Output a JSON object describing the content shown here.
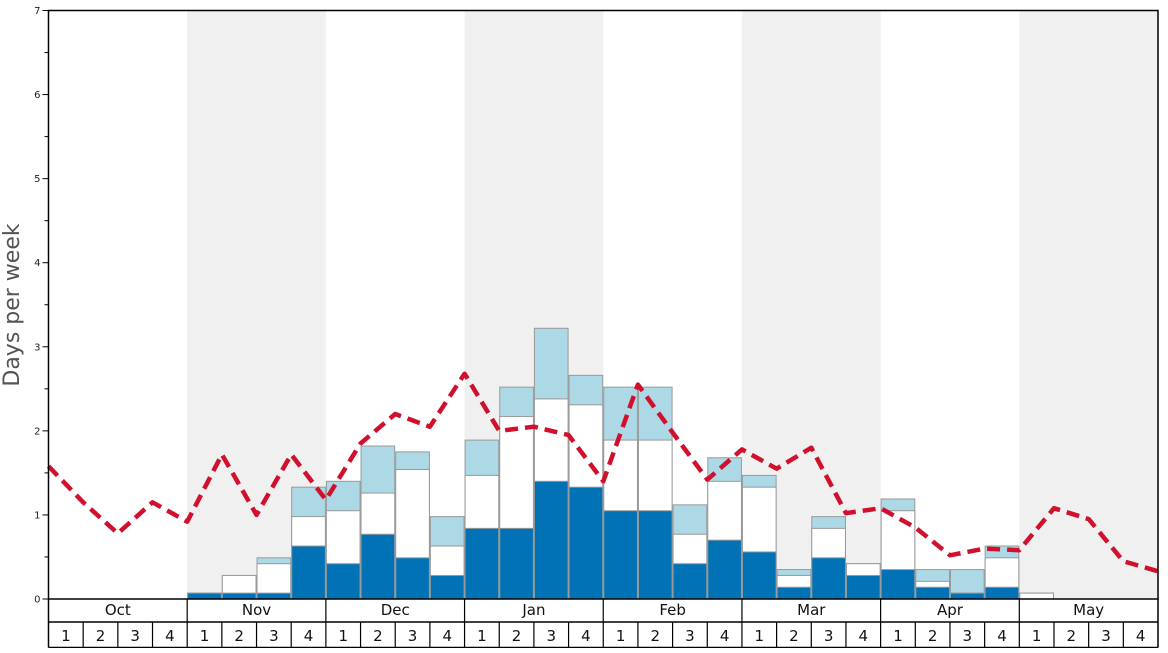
{
  "chart_data": {
    "type": "bar",
    "title": "",
    "xlabel": "",
    "ylabel": "Days per week",
    "ylim": [
      0,
      7
    ],
    "y_major_ticks": [
      0,
      1,
      2,
      3,
      4,
      5,
      6,
      7
    ],
    "months": [
      "Oct",
      "Nov",
      "Dec",
      "Jan",
      "Feb",
      "Mar",
      "Apr",
      "May"
    ],
    "week_labels": [
      "1",
      "2",
      "3",
      "4",
      "1",
      "2",
      "3",
      "4",
      "1",
      "2",
      "3",
      "4",
      "1",
      "2",
      "3",
      "4",
      "1",
      "2",
      "3",
      "4",
      "1",
      "2",
      "3",
      "4",
      "1",
      "2",
      "3",
      "4",
      "1",
      "2",
      "3",
      "4"
    ],
    "stacked_levels": {
      "dark": [
        0,
        0,
        0,
        0,
        0.07,
        0.07,
        0.07,
        0.63,
        0.42,
        0.77,
        0.49,
        0.28,
        0.84,
        0.84,
        1.4,
        1.33,
        1.05,
        1.05,
        0.42,
        0.7,
        0.56,
        0.14,
        0.49,
        0.28,
        0.35,
        0.14,
        0.07,
        0.14,
        0,
        0,
        0,
        0
      ],
      "white": [
        0,
        0,
        0,
        0,
        0.07,
        0.28,
        0.42,
        0.98,
        1.05,
        1.26,
        1.54,
        0.63,
        1.47,
        2.17,
        2.38,
        2.31,
        1.89,
        1.89,
        0.77,
        1.4,
        1.33,
        0.28,
        0.84,
        0.42,
        1.05,
        0.21,
        0.07,
        0.49,
        0.07,
        0,
        0,
        0
      ],
      "light": [
        0,
        0,
        0,
        0,
        0.07,
        0.28,
        0.49,
        1.33,
        1.4,
        1.82,
        1.75,
        0.98,
        1.89,
        2.52,
        3.22,
        2.66,
        2.52,
        2.52,
        1.12,
        1.68,
        1.47,
        0.35,
        0.98,
        0.42,
        1.19,
        0.35,
        0.35,
        0.63,
        0.07,
        0,
        0,
        0
      ]
    },
    "line": [
      1.58,
      1.15,
      0.78,
      1.15,
      0.92,
      1.72,
      1.0,
      1.72,
      1.18,
      1.85,
      2.2,
      2.05,
      2.68,
      2.0,
      2.05,
      1.95,
      1.4,
      2.55,
      1.98,
      1.42,
      1.78,
      1.55,
      1.8,
      1.02,
      1.08,
      0.85,
      0.52,
      0.6,
      0.58,
      1.08,
      0.95,
      0.45,
      0.33
    ],
    "colors": {
      "dark": "#0072b5",
      "white": "#ffffff",
      "light": "#add8e6",
      "line": "#d0102c",
      "shade": "#f0f0f0",
      "bar_stroke": "#999999"
    },
    "grid": false
  }
}
